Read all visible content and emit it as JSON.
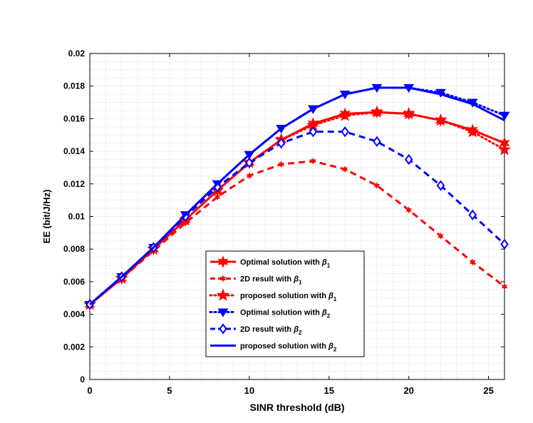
{
  "chart_data": {
    "type": "line",
    "xlabel": "SINR threshold (dB)",
    "ylabel": "EE (bit/J/Hz)",
    "xlim": [
      0,
      26
    ],
    "ylim": [
      0,
      0.02
    ],
    "xticks": [
      0,
      5,
      10,
      15,
      20,
      25
    ],
    "xtick_labels": [
      "0",
      "5",
      "10",
      "15",
      "20",
      "25"
    ],
    "yticks": [
      0,
      0.002,
      0.004,
      0.006,
      0.008,
      0.01,
      0.012,
      0.014,
      0.016,
      0.018,
      0.02
    ],
    "ytick_labels": [
      "0",
      "0.002",
      "0.004",
      "0.006",
      "0.008",
      "0.01",
      "0.012",
      "0.014",
      "0.016",
      "0.018",
      "0.02"
    ],
    "grid": true,
    "legend_position": "bottom-center",
    "series": [
      {
        "name": "Optimal solution with",
        "sym": "β",
        "sub": "1",
        "color": "#ff0000",
        "dash": "",
        "marker": "hexstar",
        "x": [
          0,
          2,
          4,
          6,
          8,
          10,
          12,
          14,
          16,
          18,
          20,
          22,
          24,
          26
        ],
        "y": [
          0.0046,
          0.0062,
          0.008,
          0.0098,
          0.0116,
          0.0133,
          0.0147,
          0.0157,
          0.0163,
          0.0164,
          0.0163,
          0.0159,
          0.0153,
          0.0145
        ]
      },
      {
        "name": "2D result with",
        "sym": "β",
        "sub": "1",
        "color": "#ff0000",
        "dash": "9 6",
        "marker": "smallstar",
        "x": [
          0,
          2,
          4,
          6,
          8,
          10,
          12,
          14,
          16,
          18,
          20,
          22,
          24,
          26
        ],
        "y": [
          0.0046,
          0.0062,
          0.0079,
          0.0096,
          0.0112,
          0.0125,
          0.0132,
          0.0134,
          0.0129,
          0.0119,
          0.0104,
          0.0088,
          0.0072,
          0.0057
        ]
      },
      {
        "name": "proposed solution with",
        "sym": "β",
        "sub": "1",
        "color": "#ff0000",
        "dash": "2 4",
        "marker": "star",
        "x": [
          0,
          2,
          4,
          6,
          8,
          10,
          12,
          14,
          16,
          18,
          20,
          22,
          24,
          26
        ],
        "y": [
          0.0046,
          0.0062,
          0.008,
          0.0098,
          0.0116,
          0.0133,
          0.0147,
          0.0156,
          0.0162,
          0.0164,
          0.0163,
          0.0159,
          0.0152,
          0.0141
        ]
      },
      {
        "name": "Optimal solution with",
        "sym": "β",
        "sub": "2",
        "color": "#0000ff",
        "dash": "2 4",
        "marker": "triangle-down",
        "x": [
          0,
          2,
          4,
          6,
          8,
          10,
          12,
          14,
          16,
          18,
          20,
          22,
          24,
          26
        ],
        "y": [
          0.0046,
          0.0063,
          0.0081,
          0.0101,
          0.012,
          0.0138,
          0.0154,
          0.0166,
          0.0175,
          0.0179,
          0.0179,
          0.0176,
          0.017,
          0.0162
        ]
      },
      {
        "name": "2D result with",
        "sym": "β",
        "sub": "2",
        "color": "#0000ff",
        "dash": "9 6",
        "marker": "diamond",
        "x": [
          0,
          2,
          4,
          6,
          8,
          10,
          12,
          14,
          16,
          18,
          20,
          22,
          24,
          26
        ],
        "y": [
          0.0046,
          0.0063,
          0.0081,
          0.01,
          0.0118,
          0.0133,
          0.0145,
          0.0152,
          0.0152,
          0.0146,
          0.0135,
          0.0119,
          0.0101,
          0.0083
        ]
      },
      {
        "name": "proposed solution with",
        "sym": "β",
        "sub": "2",
        "color": "#0000ff",
        "dash": "",
        "marker": "none",
        "x": [
          0,
          2,
          4,
          6,
          8,
          10,
          12,
          14,
          16,
          18,
          20,
          22,
          24,
          26
        ],
        "y": [
          0.0046,
          0.0063,
          0.0081,
          0.0101,
          0.012,
          0.0138,
          0.0154,
          0.0166,
          0.0175,
          0.0179,
          0.0179,
          0.0175,
          0.0169,
          0.0159
        ]
      }
    ]
  }
}
